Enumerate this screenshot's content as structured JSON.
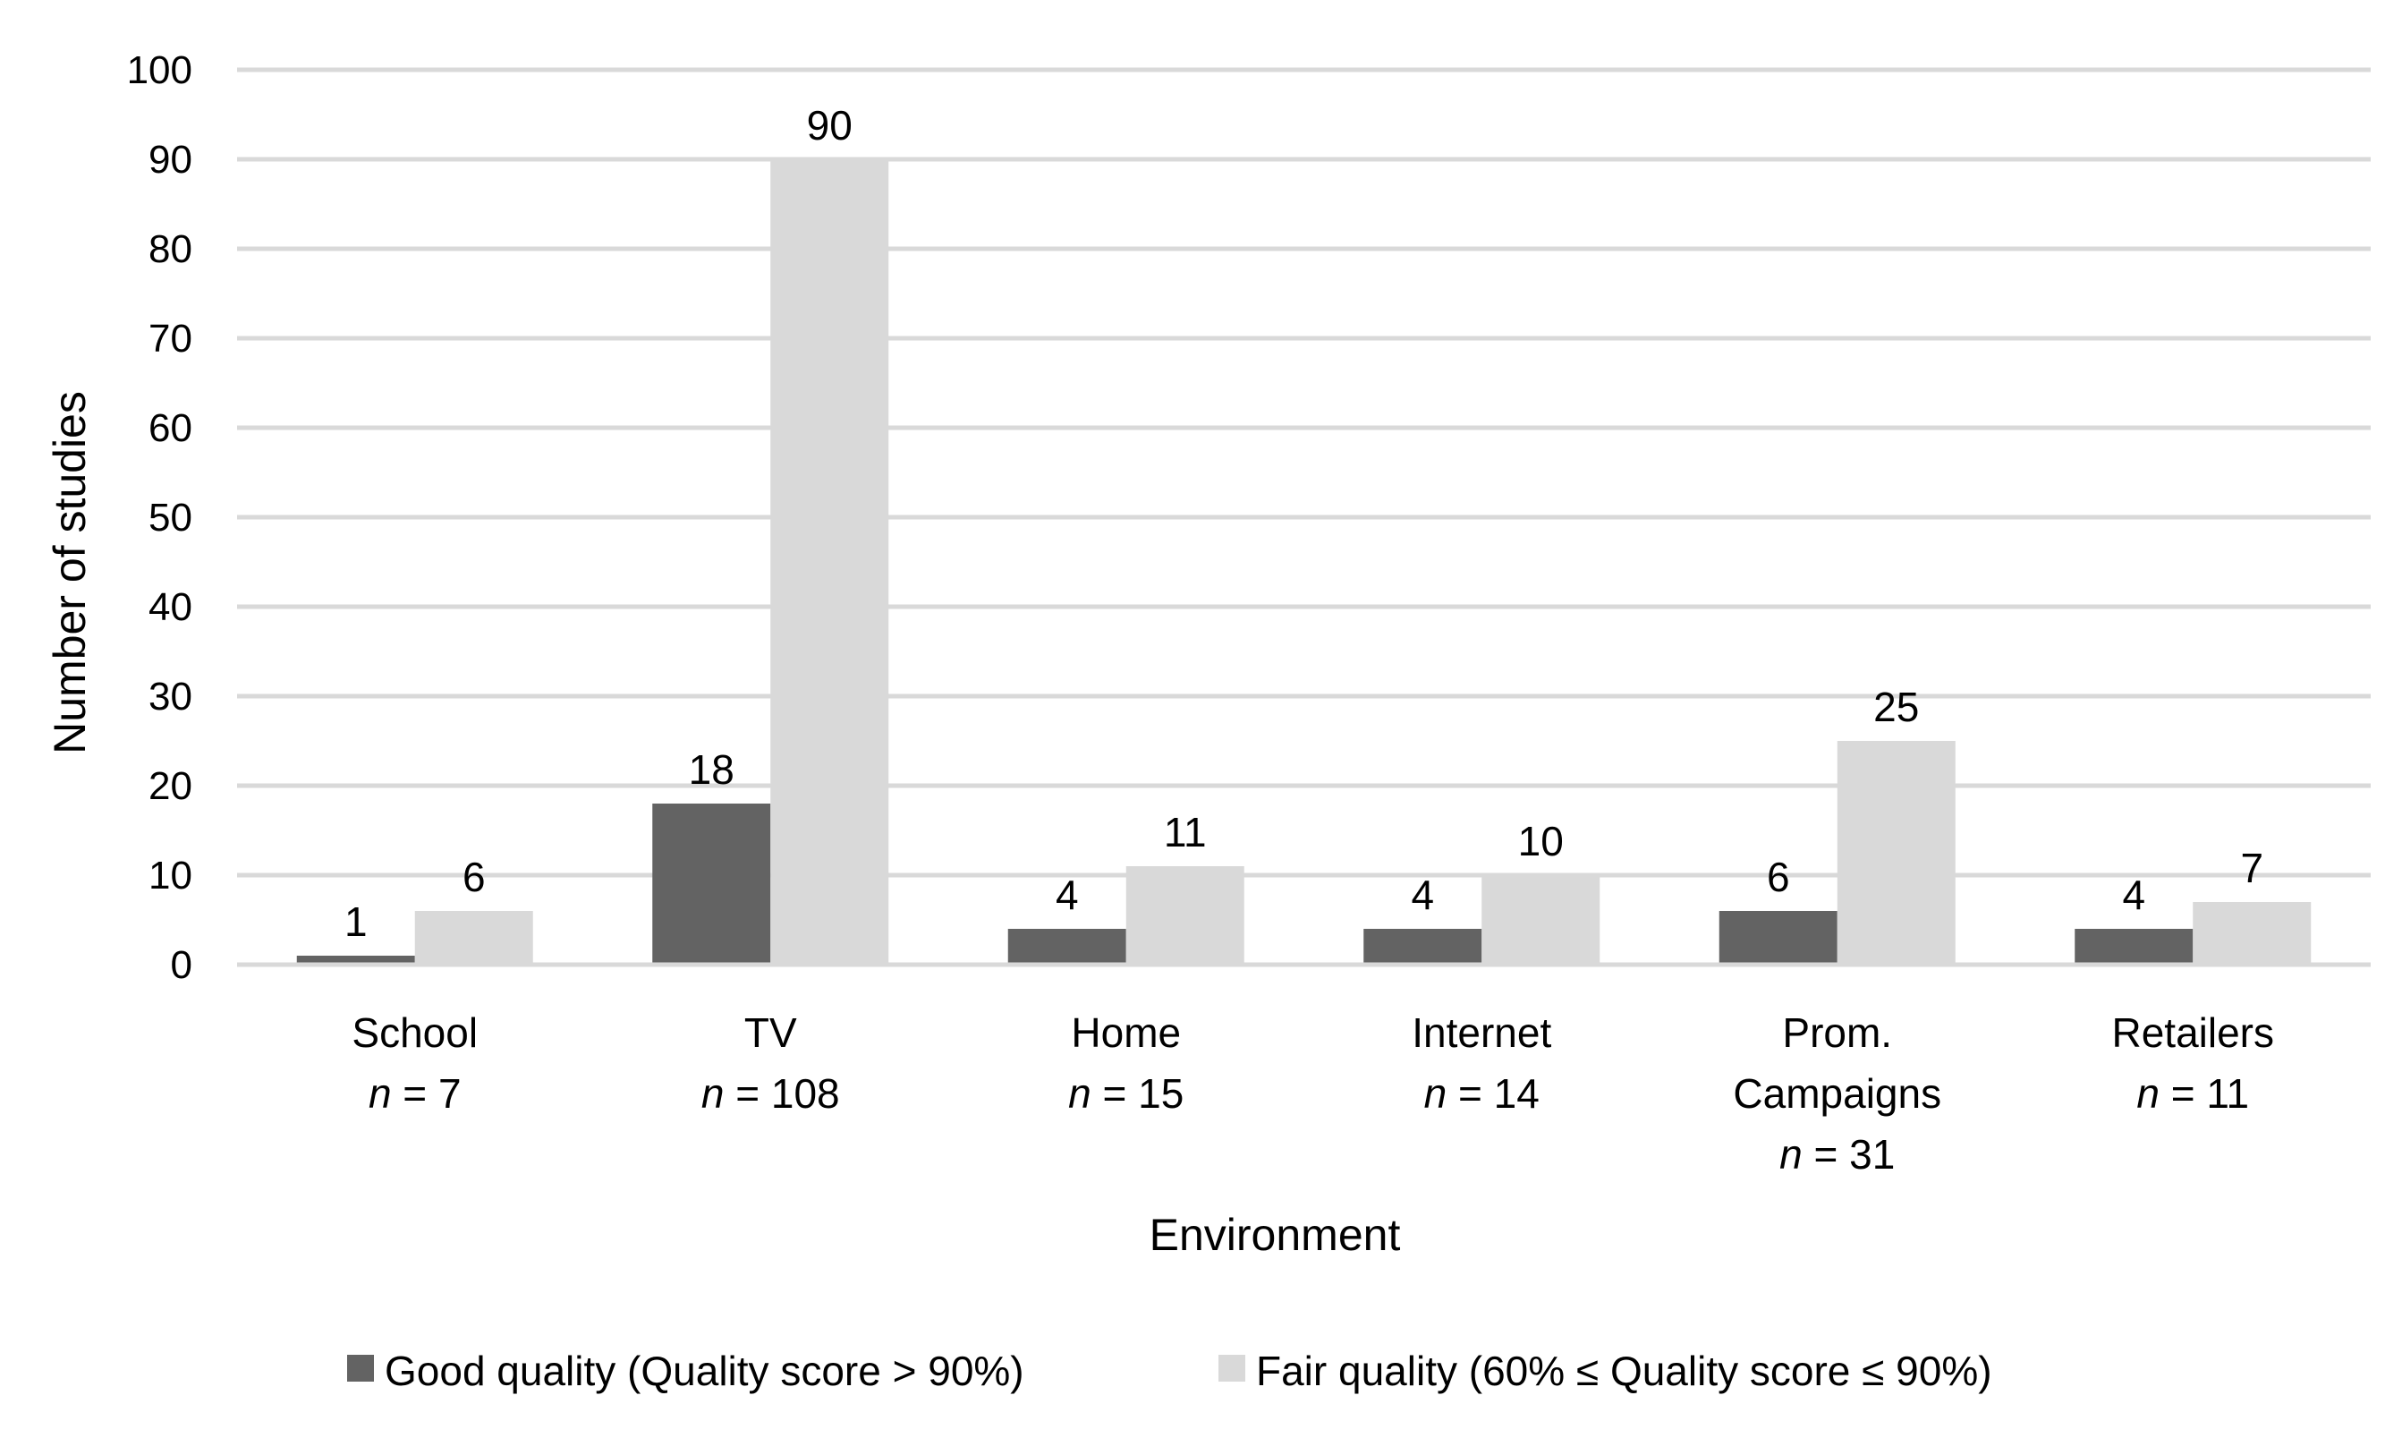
{
  "chart_data": {
    "type": "bar",
    "title": "",
    "xlabel": "Environment",
    "ylabel": "Number of studies",
    "ylim": [
      0,
      100
    ],
    "yticks": [
      0,
      10,
      20,
      30,
      40,
      50,
      60,
      70,
      80,
      90,
      100
    ],
    "grid": true,
    "legend_position": "bottom",
    "categories": [
      {
        "lines": [
          "School"
        ],
        "n_prefix": "n",
        "n_text": " = 7"
      },
      {
        "lines": [
          "TV"
        ],
        "n_prefix": "n",
        "n_text": " = 108"
      },
      {
        "lines": [
          "Home"
        ],
        "n_prefix": "n",
        "n_text": " = 15"
      },
      {
        "lines": [
          "Internet"
        ],
        "n_prefix": "n",
        "n_text": " = 14"
      },
      {
        "lines": [
          "Prom.",
          "Campaigns"
        ],
        "n_prefix": "n",
        "n_text": " = 31"
      },
      {
        "lines": [
          "Retailers"
        ],
        "n_prefix": "n",
        "n_text": " = 11"
      }
    ],
    "series": [
      {
        "name": "Good quality (Quality score > 90%)",
        "color": "#636363",
        "values": [
          1,
          18,
          4,
          4,
          6,
          4
        ]
      },
      {
        "name": "Fair quality (60% ≤ Quality score ≤ 90%)",
        "color": "#d9d9d9",
        "values": [
          6,
          90,
          11,
          10,
          25,
          7
        ]
      }
    ],
    "gridline_color": "#d9d9d9"
  }
}
